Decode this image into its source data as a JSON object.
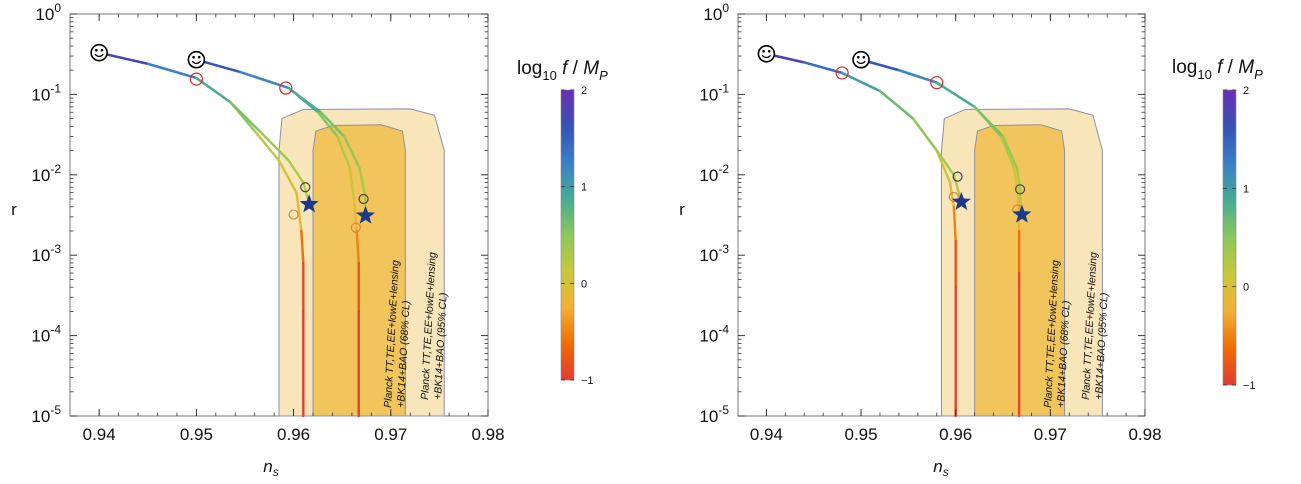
{
  "chart_data": [
    {
      "type": "line",
      "xlabel": "n_s",
      "ylabel": "r",
      "xlim": [
        0.937,
        0.98
      ],
      "ylim": [
        1e-05,
        1
      ],
      "yscale": "log",
      "x_ticks": [
        "0.94",
        "0.95",
        "0.96",
        "0.97",
        "0.98"
      ],
      "y_ticks": [
        {
          "value": 1,
          "base": "10",
          "exp": "0"
        },
        {
          "value": 0.1,
          "base": "10",
          "exp": "-1"
        },
        {
          "value": 0.01,
          "base": "10",
          "exp": "-2"
        },
        {
          "value": 0.001,
          "base": "10",
          "exp": "-3"
        },
        {
          "value": 0.0001,
          "base": "10",
          "exp": "-4"
        },
        {
          "value": 1e-05,
          "base": "10",
          "exp": "-5"
        }
      ],
      "regions": [
        {
          "label_lines": [
            "Planck TT,TE,EE+lowE+lensing",
            "+BK14+BAO (95% CL)"
          ],
          "level": "95",
          "boundary": [
            [
              0.9585,
              1e-05
            ],
            [
              0.9585,
              0.02
            ],
            [
              0.9588,
              0.05
            ],
            [
              0.961,
              0.065
            ],
            [
              0.972,
              0.066
            ],
            [
              0.9745,
              0.055
            ],
            [
              0.9755,
              0.02
            ],
            [
              0.9755,
              1e-05
            ]
          ]
        },
        {
          "label_lines": [
            "Planck TT,TE,EE+lowE+lensing",
            "+BK14+BAO (68% CL)"
          ],
          "level": "68",
          "boundary": [
            [
              0.962,
              1e-05
            ],
            [
              0.962,
              0.02
            ],
            [
              0.9623,
              0.035
            ],
            [
              0.964,
              0.041
            ],
            [
              0.969,
              0.042
            ],
            [
              0.9712,
              0.035
            ],
            [
              0.9715,
              0.02
            ],
            [
              0.9715,
              1e-05
            ]
          ]
        }
      ],
      "series": [
        {
          "points": [
            [
              0.94,
              0.33
            ],
            [
              0.945,
              0.24
            ],
            [
              0.95,
              0.16
            ],
            [
              0.9535,
              0.08
            ],
            [
              0.956,
              0.035
            ],
            [
              0.9585,
              0.015
            ],
            [
              0.9603,
              0.006
            ],
            [
              0.9608,
              0.002
            ],
            [
              0.961,
              0.0008
            ],
            [
              0.961,
              0.0002
            ],
            [
              0.961,
              1e-05
            ]
          ],
          "logf": [
            2,
            1.5,
            1,
            0.7,
            0.3,
            0.1,
            0,
            -0.4,
            -0.8,
            -0.95,
            -1
          ]
        },
        {
          "points": [
            [
              0.94,
              0.33
            ],
            [
              0.945,
              0.24
            ],
            [
              0.95,
              0.16
            ],
            [
              0.9535,
              0.08
            ],
            [
              0.9565,
              0.035
            ],
            [
              0.9595,
              0.015
            ],
            [
              0.961,
              0.008
            ],
            [
              0.9616,
              0.0045
            ]
          ],
          "logf": [
            2,
            1.5,
            1,
            0.7,
            0.5,
            0.3,
            0.25,
            0.2
          ]
        },
        {
          "points": [
            [
              0.95,
              0.27
            ],
            [
              0.9545,
              0.19
            ],
            [
              0.9595,
              0.12
            ],
            [
              0.9625,
              0.06
            ],
            [
              0.9645,
              0.03
            ],
            [
              0.9658,
              0.012
            ],
            [
              0.9662,
              0.005
            ],
            [
              0.9665,
              0.002
            ],
            [
              0.9667,
              0.0008
            ],
            [
              0.9667,
              0.0002
            ],
            [
              0.9667,
              1e-05
            ]
          ],
          "logf": [
            1.8,
            1.4,
            1,
            0.7,
            0.4,
            0.15,
            0,
            -0.3,
            -0.7,
            -0.9,
            -1
          ]
        },
        {
          "points": [
            [
              0.95,
              0.27
            ],
            [
              0.9545,
              0.19
            ],
            [
              0.9595,
              0.12
            ],
            [
              0.9628,
              0.06
            ],
            [
              0.9652,
              0.03
            ],
            [
              0.9668,
              0.012
            ],
            [
              0.9673,
              0.006
            ],
            [
              0.9675,
              0.003
            ]
          ],
          "logf": [
            1.8,
            1.4,
            1,
            0.7,
            0.5,
            0.35,
            0.3,
            0.25
          ]
        }
      ],
      "smiley_markers": [
        [
          0.94,
          0.33
        ],
        [
          0.95,
          0.27
        ]
      ],
      "star_markers": [
        [
          0.9616,
          0.0043
        ],
        [
          0.9674,
          0.0031
        ]
      ],
      "circle_markers": [
        {
          "x": 0.95,
          "y": 0.155,
          "color": "#d32f2f"
        },
        {
          "x": 0.9592,
          "y": 0.12,
          "color": "#d32f2f"
        },
        {
          "x": 0.9612,
          "y": 0.007,
          "color": "#444444"
        },
        {
          "x": 0.96,
          "y": 0.0032,
          "color": "#e0843a"
        },
        {
          "x": 0.9672,
          "y": 0.005,
          "color": "#444444"
        },
        {
          "x": 0.9664,
          "y": 0.0022,
          "color": "#e0843a"
        }
      ]
    },
    {
      "type": "line",
      "xlabel": "n_s",
      "ylabel": "r",
      "xlim": [
        0.937,
        0.98
      ],
      "ylim": [
        1e-05,
        1
      ],
      "yscale": "log",
      "x_ticks": [
        "0.94",
        "0.95",
        "0.96",
        "0.97",
        "0.98"
      ],
      "y_ticks": [
        {
          "value": 1,
          "base": "10",
          "exp": "0"
        },
        {
          "value": 0.1,
          "base": "10",
          "exp": "-1"
        },
        {
          "value": 0.01,
          "base": "10",
          "exp": "-2"
        },
        {
          "value": 0.001,
          "base": "10",
          "exp": "-3"
        },
        {
          "value": 0.0001,
          "base": "10",
          "exp": "-4"
        },
        {
          "value": 1e-05,
          "base": "10",
          "exp": "-5"
        }
      ],
      "regions": [
        {
          "label_lines": [
            "Planck TT,TE,EE+lowE+lensing",
            "+BK14+BAO (95% CL)"
          ],
          "level": "95",
          "boundary": [
            [
              0.9585,
              1e-05
            ],
            [
              0.9585,
              0.02
            ],
            [
              0.9588,
              0.05
            ],
            [
              0.961,
              0.065
            ],
            [
              0.972,
              0.066
            ],
            [
              0.9745,
              0.055
            ],
            [
              0.9755,
              0.02
            ],
            [
              0.9755,
              1e-05
            ]
          ]
        },
        {
          "label_lines": [
            "Planck TT,TE,EE+lowE+lensing",
            "+BK14+BAO (68% CL)"
          ],
          "level": "68",
          "boundary": [
            [
              0.962,
              1e-05
            ],
            [
              0.962,
              0.02
            ],
            [
              0.9623,
              0.035
            ],
            [
              0.964,
              0.041
            ],
            [
              0.969,
              0.042
            ],
            [
              0.9712,
              0.035
            ],
            [
              0.9715,
              0.02
            ],
            [
              0.9715,
              1e-05
            ]
          ]
        }
      ],
      "series": [
        {
          "points": [
            [
              0.94,
              0.32
            ],
            [
              0.944,
              0.25
            ],
            [
              0.948,
              0.185
            ],
            [
              0.952,
              0.11
            ],
            [
              0.9555,
              0.05
            ],
            [
              0.958,
              0.02
            ],
            [
              0.9594,
              0.008
            ],
            [
              0.9598,
              0.004
            ],
            [
              0.96,
              0.0015
            ],
            [
              0.96,
              0.0004
            ],
            [
              0.96,
              1e-05
            ]
          ],
          "logf": [
            2,
            1.6,
            1.2,
            0.8,
            0.4,
            0.15,
            0,
            -0.3,
            -0.7,
            -0.9,
            -1
          ]
        },
        {
          "points": [
            [
              0.94,
              0.32
            ],
            [
              0.944,
              0.25
            ],
            [
              0.948,
              0.185
            ],
            [
              0.952,
              0.11
            ],
            [
              0.9555,
              0.05
            ],
            [
              0.958,
              0.02
            ],
            [
              0.9598,
              0.01
            ],
            [
              0.9606,
              0.0046
            ]
          ],
          "logf": [
            2,
            1.6,
            1.2,
            0.8,
            0.55,
            0.4,
            0.3,
            0.25
          ]
        },
        {
          "points": [
            [
              0.95,
              0.27
            ],
            [
              0.954,
              0.2
            ],
            [
              0.958,
              0.14
            ],
            [
              0.962,
              0.07
            ],
            [
              0.9648,
              0.03
            ],
            [
              0.9662,
              0.012
            ],
            [
              0.9666,
              0.005
            ],
            [
              0.9667,
              0.002
            ],
            [
              0.9667,
              0.0006
            ],
            [
              0.9667,
              1e-05
            ]
          ],
          "logf": [
            1.8,
            1.4,
            1,
            0.7,
            0.4,
            0.15,
            0,
            -0.4,
            -0.8,
            -1
          ]
        },
        {
          "points": [
            [
              0.95,
              0.27
            ],
            [
              0.954,
              0.2
            ],
            [
              0.958,
              0.14
            ],
            [
              0.962,
              0.07
            ],
            [
              0.965,
              0.03
            ],
            [
              0.9665,
              0.012
            ],
            [
              0.9668,
              0.0066
            ],
            [
              0.9669,
              0.0032
            ]
          ],
          "logf": [
            1.8,
            1.4,
            1,
            0.7,
            0.5,
            0.35,
            0.3,
            0.25
          ]
        }
      ],
      "smiley_markers": [
        [
          0.94,
          0.32
        ],
        [
          0.95,
          0.27
        ]
      ],
      "star_markers": [
        [
          0.9606,
          0.0046
        ],
        [
          0.967,
          0.0032
        ]
      ],
      "circle_markers": [
        {
          "x": 0.948,
          "y": 0.185,
          "color": "#d32f2f"
        },
        {
          "x": 0.958,
          "y": 0.14,
          "color": "#d32f2f"
        },
        {
          "x": 0.9602,
          "y": 0.0095,
          "color": "#444444"
        },
        {
          "x": 0.9598,
          "y": 0.0053,
          "color": "#e0843a"
        },
        {
          "x": 0.9668,
          "y": 0.0066,
          "color": "#444444"
        },
        {
          "x": 0.9665,
          "y": 0.0037,
          "color": "#e0843a"
        }
      ]
    }
  ],
  "colorbar": {
    "title_prefix": "log",
    "title_sub": "10",
    "title_f": "f",
    "title_slash": " / ",
    "title_M": "M",
    "title_Msub": "P",
    "range": [
      -1,
      2
    ],
    "ticks": [
      "2",
      "1",
      "0",
      "−1"
    ],
    "stops": [
      "#e53935",
      "#ef6c00",
      "#f2b134",
      "#c8c83a",
      "#8cc85a",
      "#47aa93",
      "#3a7fc8",
      "#3651b8",
      "#6a2fb4"
    ]
  },
  "colors": {
    "region95": "#f8e5b9",
    "region68": "#f1c45c",
    "region_edge": "#8c8fa8",
    "star": "#1c3a8a"
  }
}
